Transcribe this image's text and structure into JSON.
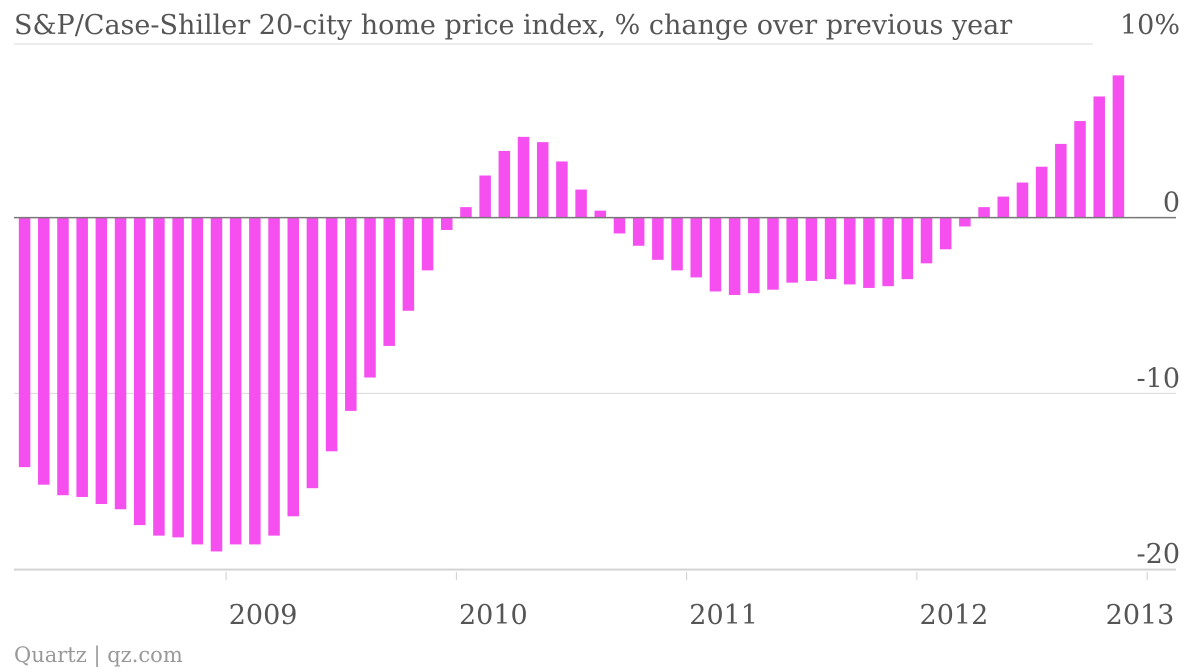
{
  "chart_data": {
    "type": "bar",
    "title": "S&P/Case-Shiller 20-city home price index, % change over previous year",
    "xlabel": "",
    "ylabel": "",
    "ylim": [
      -20,
      10
    ],
    "y_ticks": [
      "10%",
      "0",
      "-10",
      "-20"
    ],
    "x_ticks": [
      "2009",
      "2010",
      "2011",
      "2012",
      "2013"
    ],
    "grid": true,
    "bar_color": "#f54ff0",
    "series": [
      {
        "values": [
          -14.2,
          -15.2,
          -15.8,
          -15.9,
          -16.3,
          -16.6,
          -17.5,
          -18.1,
          -18.2,
          -18.6,
          -19.0,
          -18.6,
          -18.6,
          -18.1,
          -17.0,
          -15.4,
          -13.3,
          -11.0,
          -9.1,
          -7.3,
          -5.3,
          -3.0,
          -0.7,
          0.6,
          2.4,
          3.8,
          4.6,
          4.3,
          3.2,
          1.6,
          0.4,
          -0.9,
          -1.6,
          -2.4,
          -3.0,
          -3.4,
          -4.2,
          -4.4,
          -4.3,
          -4.1,
          -3.7,
          -3.6,
          -3.5,
          -3.8,
          -4.0,
          -3.9,
          -3.5,
          -2.6,
          -1.8,
          -0.5,
          0.6,
          1.2,
          2.0,
          2.9,
          4.2,
          5.5,
          6.9,
          8.1
        ]
      }
    ]
  },
  "credit": "Quartz | qz.com"
}
